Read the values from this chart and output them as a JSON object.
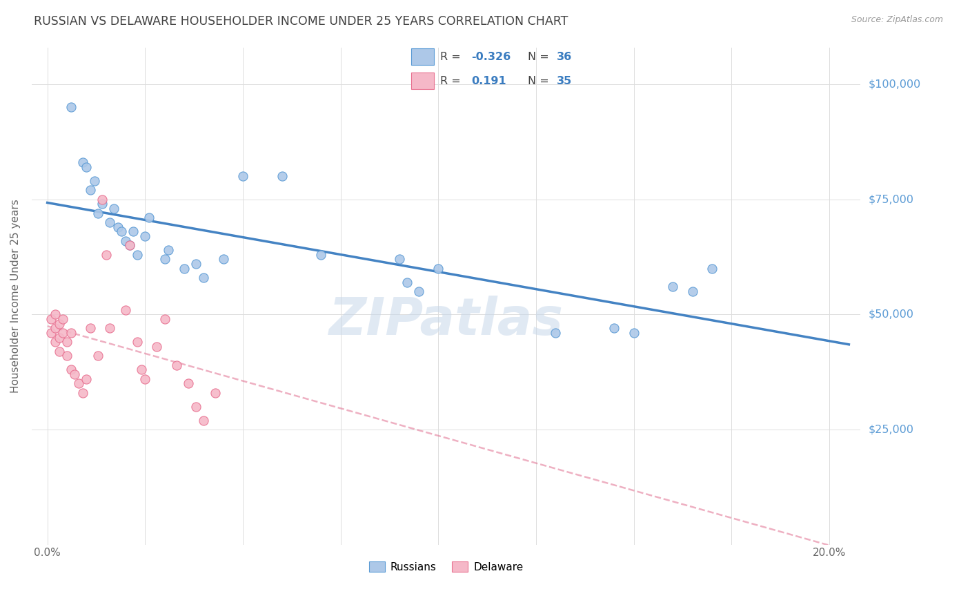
{
  "title": "RUSSIAN VS DELAWARE HOUSEHOLDER INCOME UNDER 25 YEARS CORRELATION CHART",
  "source": "Source: ZipAtlas.com",
  "ylabel": "Householder Income Under 25 years",
  "y_ticks": [
    0,
    25000,
    50000,
    75000,
    100000
  ],
  "y_tick_labels": [
    "",
    "$25,000",
    "$50,000",
    "$75,000",
    "$100,000"
  ],
  "x_ticks": [
    0.0,
    0.025,
    0.05,
    0.075,
    0.1,
    0.125,
    0.15,
    0.175,
    0.2
  ],
  "legend_r_russian": "-0.326",
  "legend_n_russian": "36",
  "legend_r_delaware": "0.191",
  "legend_n_delaware": "35",
  "russian_fill": "#adc8e8",
  "russian_edge": "#5b9bd5",
  "delaware_fill": "#f5b8c8",
  "delaware_edge": "#e87090",
  "russian_line_color": "#3a7cc0",
  "delaware_line_color": "#e07090",
  "background_color": "#ffffff",
  "grid_color": "#dddddd",
  "watermark": "ZIPatlas",
  "watermark_color": "#c8d8ea",
  "title_color": "#444444",
  "right_label_color": "#5b9bd5",
  "legend_value_color": "#3a7cc0",
  "scatter_size": 90,
  "russians_x": [
    0.006,
    0.009,
    0.01,
    0.011,
    0.012,
    0.013,
    0.014,
    0.016,
    0.017,
    0.018,
    0.019,
    0.02,
    0.021,
    0.022,
    0.023,
    0.025,
    0.026,
    0.03,
    0.031,
    0.035,
    0.038,
    0.04,
    0.045,
    0.05,
    0.06,
    0.07,
    0.09,
    0.092,
    0.095,
    0.1,
    0.13,
    0.145,
    0.15,
    0.16,
    0.165,
    0.17
  ],
  "russians_y": [
    95000,
    83000,
    82000,
    77000,
    79000,
    72000,
    74000,
    70000,
    73000,
    69000,
    68000,
    66000,
    65000,
    68000,
    63000,
    67000,
    71000,
    62000,
    64000,
    60000,
    61000,
    58000,
    62000,
    80000,
    80000,
    63000,
    62000,
    57000,
    55000,
    60000,
    46000,
    47000,
    46000,
    56000,
    55000,
    60000
  ],
  "delaware_x": [
    0.001,
    0.001,
    0.002,
    0.002,
    0.002,
    0.003,
    0.003,
    0.003,
    0.004,
    0.004,
    0.005,
    0.005,
    0.006,
    0.006,
    0.007,
    0.008,
    0.009,
    0.01,
    0.011,
    0.013,
    0.014,
    0.015,
    0.016,
    0.02,
    0.021,
    0.023,
    0.024,
    0.025,
    0.028,
    0.03,
    0.033,
    0.036,
    0.038,
    0.04,
    0.043
  ],
  "delaware_y": [
    49000,
    46000,
    50000,
    47000,
    44000,
    48000,
    45000,
    42000,
    49000,
    46000,
    44000,
    41000,
    46000,
    38000,
    37000,
    35000,
    33000,
    36000,
    47000,
    41000,
    75000,
    63000,
    47000,
    51000,
    65000,
    44000,
    38000,
    36000,
    43000,
    49000,
    39000,
    35000,
    30000,
    27000,
    33000
  ]
}
